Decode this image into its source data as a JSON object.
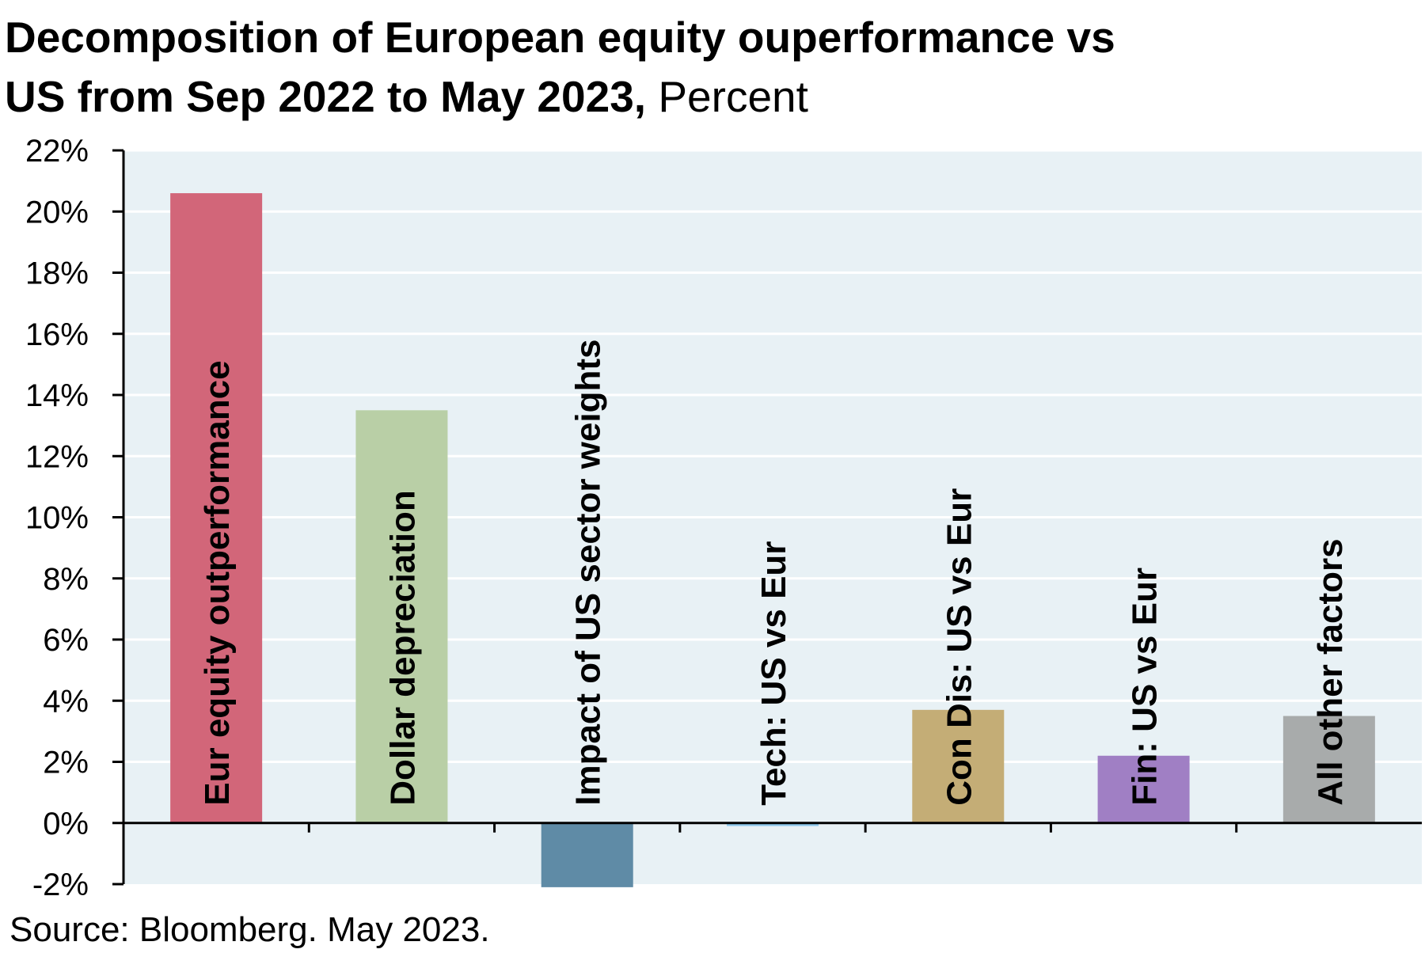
{
  "chart_data": {
    "type": "bar",
    "title_line1": "Decomposition of European equity ouperformance vs",
    "title_line2": "US from Sep 2022 to May 2023,",
    "unit_label": "Percent",
    "categories": [
      "Eur equity outperformance",
      "Dollar depreciation",
      "Impact of US sector weights",
      "Tech: US vs Eur",
      "Con Dis: US vs Eur",
      "Fin: US vs Eur",
      "All other factors"
    ],
    "values": [
      20.6,
      13.5,
      -2.1,
      -0.1,
      3.7,
      2.2,
      3.5
    ],
    "colors": [
      "#d26679",
      "#b9cfa6",
      "#5f8ba6",
      "#8ec9ec",
      "#c4ad76",
      "#a07fc4",
      "#a8abab"
    ],
    "y_ticks": [
      "-2%",
      "0%",
      "2%",
      "4%",
      "6%",
      "8%",
      "10%",
      "12%",
      "14%",
      "16%",
      "18%",
      "20%",
      "22%"
    ],
    "ylim": [
      -2,
      22
    ],
    "grid": true,
    "plot_background": "#e8f1f5",
    "source": "Source: Bloomberg. May 2023."
  }
}
